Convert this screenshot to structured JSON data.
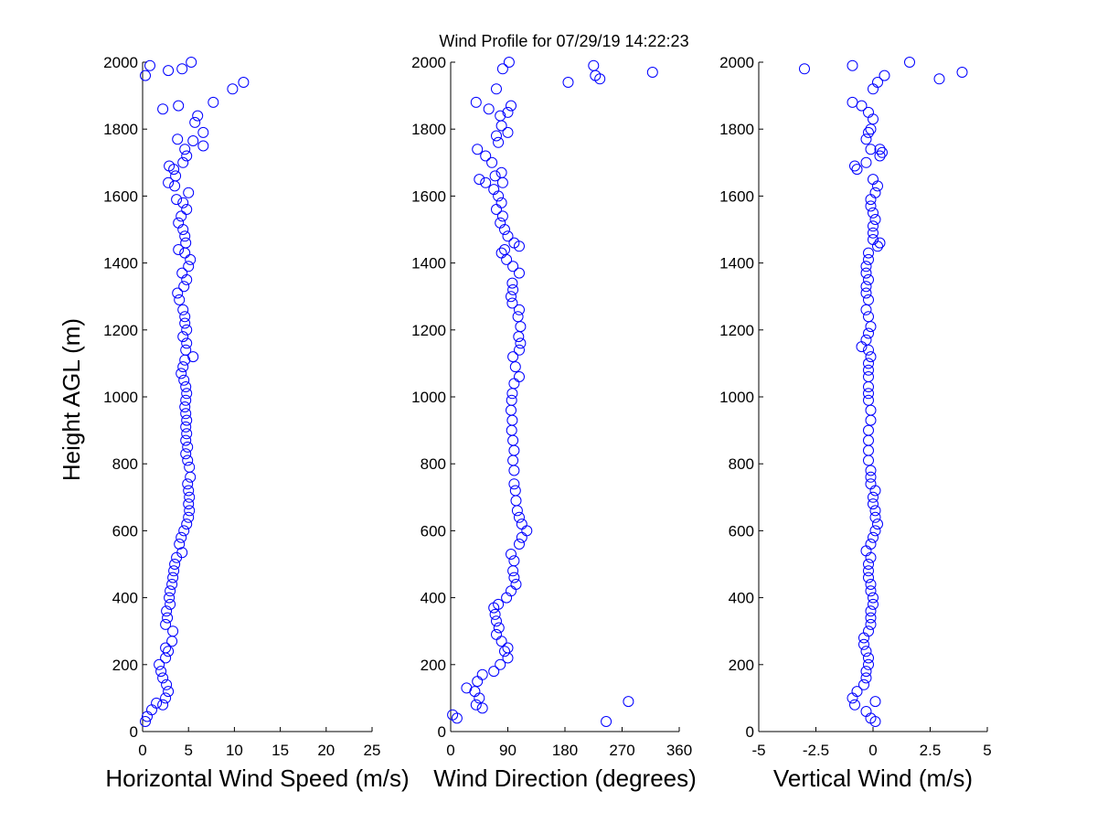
{
  "title": "Wind Profile for  07/29/19 14:22:23",
  "ylabel": "Height AGL (m)",
  "marker_color": "#0000ff",
  "chart_data": [
    {
      "type": "scatter",
      "name": "speed",
      "xlabel": "Horizontal Wind Speed (m/s)",
      "xlim": [
        0,
        25
      ],
      "xticks": [
        0,
        5,
        10,
        15,
        20,
        25
      ],
      "xtick_labels": [
        "0",
        "5",
        "10",
        "15",
        "20",
        "25"
      ],
      "ylim": [
        0,
        2000
      ],
      "yticks": [
        0,
        200,
        400,
        600,
        800,
        1000,
        1200,
        1400,
        1600,
        1800,
        2000
      ],
      "points": [
        [
          0.3,
          30
        ],
        [
          0.5,
          45
        ],
        [
          1.0,
          65
        ],
        [
          1.5,
          85
        ],
        [
          2.2,
          80
        ],
        [
          2.5,
          100
        ],
        [
          2.8,
          120
        ],
        [
          2.6,
          140
        ],
        [
          2.2,
          160
        ],
        [
          2.0,
          180
        ],
        [
          1.8,
          200
        ],
        [
          2.5,
          220
        ],
        [
          2.8,
          240
        ],
        [
          2.5,
          250
        ],
        [
          3.2,
          270
        ],
        [
          3.3,
          300
        ],
        [
          2.5,
          320
        ],
        [
          2.7,
          340
        ],
        [
          2.6,
          360
        ],
        [
          3.0,
          380
        ],
        [
          2.9,
          400
        ],
        [
          3.0,
          420
        ],
        [
          3.2,
          440
        ],
        [
          3.3,
          460
        ],
        [
          3.4,
          480
        ],
        [
          3.5,
          500
        ],
        [
          3.7,
          520
        ],
        [
          4.3,
          535
        ],
        [
          4.0,
          560
        ],
        [
          4.2,
          580
        ],
        [
          4.5,
          600
        ],
        [
          4.8,
          620
        ],
        [
          5.0,
          640
        ],
        [
          5.1,
          660
        ],
        [
          5.0,
          680
        ],
        [
          5.1,
          700
        ],
        [
          5.0,
          720
        ],
        [
          4.9,
          740
        ],
        [
          5.2,
          760
        ],
        [
          5.1,
          790
        ],
        [
          4.9,
          810
        ],
        [
          4.7,
          830
        ],
        [
          4.9,
          850
        ],
        [
          4.7,
          870
        ],
        [
          4.8,
          890
        ],
        [
          4.7,
          910
        ],
        [
          4.8,
          930
        ],
        [
          4.7,
          950
        ],
        [
          4.6,
          970
        ],
        [
          4.7,
          990
        ],
        [
          4.8,
          1010
        ],
        [
          4.7,
          1030
        ],
        [
          4.5,
          1050
        ],
        [
          4.2,
          1070
        ],
        [
          4.4,
          1090
        ],
        [
          4.6,
          1110
        ],
        [
          5.5,
          1120
        ],
        [
          4.7,
          1140
        ],
        [
          4.8,
          1160
        ],
        [
          4.4,
          1180
        ],
        [
          4.8,
          1200
        ],
        [
          4.6,
          1220
        ],
        [
          4.6,
          1240
        ],
        [
          4.4,
          1260
        ],
        [
          4.0,
          1290
        ],
        [
          3.8,
          1310
        ],
        [
          4.5,
          1330
        ],
        [
          4.8,
          1350
        ],
        [
          4.3,
          1370
        ],
        [
          5.0,
          1390
        ],
        [
          5.2,
          1410
        ],
        [
          4.6,
          1430
        ],
        [
          3.9,
          1440
        ],
        [
          4.7,
          1460
        ],
        [
          4.6,
          1480
        ],
        [
          4.4,
          1500
        ],
        [
          3.9,
          1520
        ],
        [
          4.2,
          1540
        ],
        [
          4.8,
          1560
        ],
        [
          4.4,
          1580
        ],
        [
          3.7,
          1590
        ],
        [
          5.0,
          1610
        ],
        [
          3.5,
          1630
        ],
        [
          2.8,
          1640
        ],
        [
          3.6,
          1660
        ],
        [
          3.4,
          1680
        ],
        [
          2.9,
          1690
        ],
        [
          4.4,
          1700
        ],
        [
          4.8,
          1720
        ],
        [
          4.6,
          1740
        ],
        [
          6.6,
          1750
        ],
        [
          5.5,
          1765
        ],
        [
          3.8,
          1770
        ],
        [
          6.6,
          1790
        ],
        [
          5.7,
          1820
        ],
        [
          6.0,
          1840
        ],
        [
          2.2,
          1860
        ],
        [
          3.9,
          1870
        ],
        [
          7.7,
          1880
        ],
        [
          9.8,
          1920
        ],
        [
          11.0,
          1940
        ],
        [
          0.3,
          1960
        ],
        [
          2.8,
          1975
        ],
        [
          4.3,
          1980
        ],
        [
          0.8,
          1990
        ],
        [
          5.3,
          2000
        ]
      ]
    },
    {
      "type": "scatter",
      "name": "direction",
      "xlabel": "Wind Direction (degrees)",
      "xlim": [
        0,
        360
      ],
      "xticks": [
        0,
        90,
        180,
        270,
        360
      ],
      "xtick_labels": [
        "0",
        "90",
        "180",
        "270",
        "360"
      ],
      "ylim": [
        0,
        2000
      ],
      "yticks": [
        0,
        200,
        400,
        600,
        800,
        1000,
        1200,
        1400,
        1600,
        1800,
        2000
      ],
      "points": [
        [
          245,
          30
        ],
        [
          10,
          40
        ],
        [
          3,
          50
        ],
        [
          280,
          90
        ],
        [
          50,
          70
        ],
        [
          40,
          80
        ],
        [
          45,
          100
        ],
        [
          38,
          120
        ],
        [
          25,
          130
        ],
        [
          42,
          150
        ],
        [
          50,
          170
        ],
        [
          68,
          180
        ],
        [
          78,
          200
        ],
        [
          90,
          220
        ],
        [
          85,
          240
        ],
        [
          90,
          250
        ],
        [
          80,
          270
        ],
        [
          72,
          290
        ],
        [
          76,
          310
        ],
        [
          72,
          330
        ],
        [
          70,
          350
        ],
        [
          68,
          370
        ],
        [
          75,
          380
        ],
        [
          88,
          400
        ],
        [
          95,
          420
        ],
        [
          103,
          440
        ],
        [
          100,
          460
        ],
        [
          98,
          480
        ],
        [
          100,
          510
        ],
        [
          95,
          530
        ],
        [
          108,
          560
        ],
        [
          112,
          580
        ],
        [
          120,
          600
        ],
        [
          112,
          620
        ],
        [
          108,
          640
        ],
        [
          105,
          660
        ],
        [
          103,
          690
        ],
        [
          102,
          720
        ],
        [
          100,
          740
        ],
        [
          100,
          780
        ],
        [
          98,
          810
        ],
        [
          100,
          840
        ],
        [
          98,
          870
        ],
        [
          96,
          900
        ],
        [
          97,
          930
        ],
        [
          95,
          960
        ],
        [
          96,
          990
        ],
        [
          97,
          1010
        ],
        [
          100,
          1040
        ],
        [
          108,
          1060
        ],
        [
          102,
          1090
        ],
        [
          98,
          1120
        ],
        [
          108,
          1140
        ],
        [
          110,
          1160
        ],
        [
          107,
          1180
        ],
        [
          110,
          1210
        ],
        [
          106,
          1240
        ],
        [
          108,
          1260
        ],
        [
          97,
          1280
        ],
        [
          95,
          1300
        ],
        [
          98,
          1320
        ],
        [
          97,
          1340
        ],
        [
          108,
          1370
        ],
        [
          98,
          1390
        ],
        [
          88,
          1410
        ],
        [
          80,
          1430
        ],
        [
          85,
          1440
        ],
        [
          108,
          1450
        ],
        [
          100,
          1460
        ],
        [
          90,
          1480
        ],
        [
          85,
          1500
        ],
        [
          78,
          1520
        ],
        [
          82,
          1540
        ],
        [
          72,
          1560
        ],
        [
          80,
          1580
        ],
        [
          75,
          1600
        ],
        [
          68,
          1620
        ],
        [
          82,
          1640
        ],
        [
          70,
          1660
        ],
        [
          80,
          1670
        ],
        [
          45,
          1650
        ],
        [
          55,
          1640
        ],
        [
          65,
          1700
        ],
        [
          42,
          1740
        ],
        [
          55,
          1720
        ],
        [
          75,
          1760
        ],
        [
          72,
          1780
        ],
        [
          90,
          1790
        ],
        [
          80,
          1810
        ],
        [
          78,
          1840
        ],
        [
          90,
          1850
        ],
        [
          95,
          1870
        ],
        [
          40,
          1880
        ],
        [
          60,
          1860
        ],
        [
          72,
          1920
        ],
        [
          185,
          1940
        ],
        [
          235,
          1950
        ],
        [
          228,
          1960
        ],
        [
          318,
          1970
        ],
        [
          82,
          1980
        ],
        [
          225,
          1990
        ],
        [
          92,
          2000
        ]
      ]
    },
    {
      "type": "scatter",
      "name": "vertical",
      "xlabel": "Vertical Wind (m/s)",
      "xlim": [
        -5,
        5
      ],
      "xticks": [
        -5,
        -2.5,
        0,
        2.5,
        5
      ],
      "xtick_labels": [
        "-5",
        "-2.5",
        "0",
        "2.5",
        "5"
      ],
      "ylim": [
        0,
        2000
      ],
      "yticks": [
        0,
        200,
        400,
        600,
        800,
        1000,
        1200,
        1400,
        1600,
        1800,
        2000
      ],
      "points": [
        [
          0.1,
          30
        ],
        [
          -0.1,
          40
        ],
        [
          -0.3,
          60
        ],
        [
          0.1,
          90
        ],
        [
          -0.8,
          80
        ],
        [
          -0.9,
          100
        ],
        [
          -0.7,
          120
        ],
        [
          -0.4,
          140
        ],
        [
          -0.3,
          160
        ],
        [
          -0.3,
          180
        ],
        [
          -0.2,
          200
        ],
        [
          -0.2,
          220
        ],
        [
          -0.3,
          240
        ],
        [
          -0.4,
          260
        ],
        [
          -0.4,
          280
        ],
        [
          -0.2,
          300
        ],
        [
          -0.1,
          320
        ],
        [
          -0.1,
          340
        ],
        [
          -0.1,
          360
        ],
        [
          0,
          380
        ],
        [
          0,
          400
        ],
        [
          -0.1,
          420
        ],
        [
          -0.1,
          440
        ],
        [
          -0.2,
          460
        ],
        [
          -0.2,
          480
        ],
        [
          -0.2,
          500
        ],
        [
          -0.1,
          520
        ],
        [
          -0.3,
          540
        ],
        [
          -0.1,
          560
        ],
        [
          0,
          580
        ],
        [
          0.1,
          600
        ],
        [
          0.2,
          620
        ],
        [
          0.1,
          640
        ],
        [
          0.1,
          660
        ],
        [
          0,
          680
        ],
        [
          0,
          700
        ],
        [
          0.1,
          720
        ],
        [
          -0.1,
          740
        ],
        [
          -0.1,
          760
        ],
        [
          -0.1,
          780
        ],
        [
          -0.2,
          810
        ],
        [
          -0.2,
          840
        ],
        [
          -0.2,
          870
        ],
        [
          -0.2,
          900
        ],
        [
          -0.1,
          930
        ],
        [
          -0.1,
          960
        ],
        [
          -0.2,
          990
        ],
        [
          -0.2,
          1010
        ],
        [
          -0.2,
          1030
        ],
        [
          -0.2,
          1060
        ],
        [
          -0.2,
          1080
        ],
        [
          -0.2,
          1100
        ],
        [
          -0.1,
          1120
        ],
        [
          -0.2,
          1140
        ],
        [
          -0.5,
          1150
        ],
        [
          -0.3,
          1170
        ],
        [
          -0.2,
          1190
        ],
        [
          -0.1,
          1210
        ],
        [
          -0.2,
          1240
        ],
        [
          -0.3,
          1260
        ],
        [
          -0.2,
          1290
        ],
        [
          -0.3,
          1310
        ],
        [
          -0.3,
          1330
        ],
        [
          -0.2,
          1350
        ],
        [
          -0.3,
          1370
        ],
        [
          -0.3,
          1390
        ],
        [
          -0.2,
          1410
        ],
        [
          -0.2,
          1430
        ],
        [
          0.2,
          1450
        ],
        [
          0.3,
          1460
        ],
        [
          0,
          1470
        ],
        [
          0,
          1490
        ],
        [
          0,
          1510
        ],
        [
          0.1,
          1530
        ],
        [
          0,
          1550
        ],
        [
          -0.1,
          1570
        ],
        [
          -0.1,
          1590
        ],
        [
          0.1,
          1610
        ],
        [
          0.2,
          1630
        ],
        [
          0,
          1650
        ],
        [
          -0.7,
          1680
        ],
        [
          -0.8,
          1690
        ],
        [
          -0.3,
          1700
        ],
        [
          0.3,
          1720
        ],
        [
          0.4,
          1730
        ],
        [
          0.3,
          1740
        ],
        [
          -0.1,
          1740
        ],
        [
          -0.3,
          1770
        ],
        [
          -0.2,
          1790
        ],
        [
          -0.1,
          1800
        ],
        [
          0,
          1830
        ],
        [
          -0.2,
          1850
        ],
        [
          -0.5,
          1870
        ],
        [
          -0.9,
          1880
        ],
        [
          0,
          1920
        ],
        [
          0.2,
          1940
        ],
        [
          0.5,
          1960
        ],
        [
          -3.0,
          1980
        ],
        [
          -0.9,
          1990
        ],
        [
          1.6,
          2000
        ],
        [
          3.9,
          1970
        ],
        [
          2.9,
          1950
        ]
      ]
    }
  ]
}
